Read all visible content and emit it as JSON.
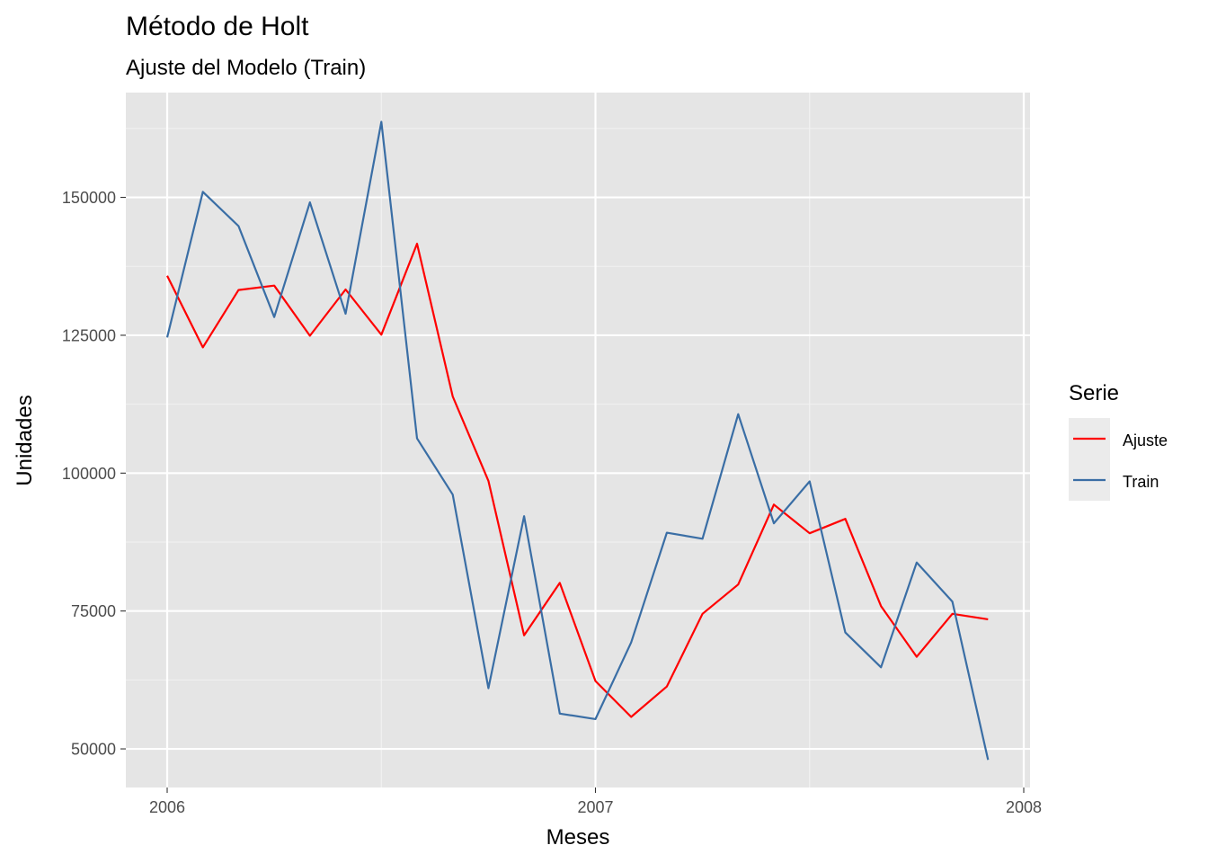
{
  "chart_data": {
    "type": "line",
    "title": "Método de Holt",
    "subtitle": "Ajuste del Modelo (Train)",
    "xlabel": "Meses",
    "ylabel": "Unidades",
    "x": [
      "2006-01",
      "2006-02",
      "2006-03",
      "2006-04",
      "2006-05",
      "2006-06",
      "2006-07",
      "2006-08",
      "2006-09",
      "2006-10",
      "2006-11",
      "2006-12",
      "2007-01",
      "2007-02",
      "2007-03",
      "2007-04",
      "2007-05",
      "2007-06",
      "2007-07",
      "2007-08",
      "2007-09",
      "2007-10",
      "2007-11",
      "2007-12"
    ],
    "x_ticks": [
      "2006",
      "2007",
      "2008"
    ],
    "y_ticks": [
      50000,
      75000,
      100000,
      125000,
      150000
    ],
    "ylim": [
      43000,
      169000
    ],
    "grid": true,
    "legend": {
      "title": "Serie",
      "position": "right"
    },
    "series": [
      {
        "name": "Ajuste",
        "color": "#ff0000",
        "values": [
          135800,
          122800,
          133200,
          134000,
          124900,
          133300,
          125100,
          141600,
          113900,
          98600,
          70600,
          80100,
          62300,
          55800,
          61300,
          74500,
          79800,
          94300,
          89100,
          91700,
          75900,
          66700,
          74500,
          73500
        ]
      },
      {
        "name": "Train",
        "color": "#3a6ea5",
        "values": [
          124600,
          151000,
          144800,
          128300,
          149100,
          128900,
          163700,
          106300,
          96100,
          61000,
          92200,
          56400,
          55400,
          69300,
          89200,
          88100,
          110700,
          90900,
          98500,
          71100,
          64800,
          83800,
          76700,
          48000
        ]
      }
    ]
  }
}
